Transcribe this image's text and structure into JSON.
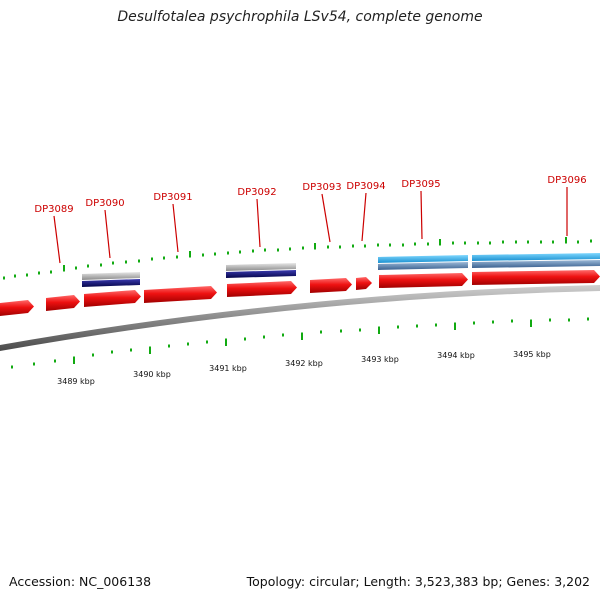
{
  "title": "Desulfotalea psychrophila LSv54, complete genome",
  "footer": {
    "accession": "Accession: NC_006138",
    "topology": "Topology: circular; Length: 3,523,383 bp; Genes: 3,202"
  },
  "genes": [
    "DP3089",
    "DP3090",
    "DP3091",
    "DP3092",
    "DP3093",
    "DP3094",
    "DP3095",
    "DP3096"
  ],
  "kbp_ticks": [
    "3489 kbp",
    "3490 kbp",
    "3491 kbp",
    "3492 kbp",
    "3493 kbp",
    "3494 kbp",
    "3495 kbp"
  ],
  "colors": {
    "cds": "#ee1111",
    "rna_dark": "#0a0a80",
    "rna_light": "#aaaaaa",
    "track_blue": "#2aa8e0",
    "track_steel": "#5580aa",
    "tick_green": "#11aa11",
    "label_red": "#cc0000",
    "backbone": "#777777"
  }
}
